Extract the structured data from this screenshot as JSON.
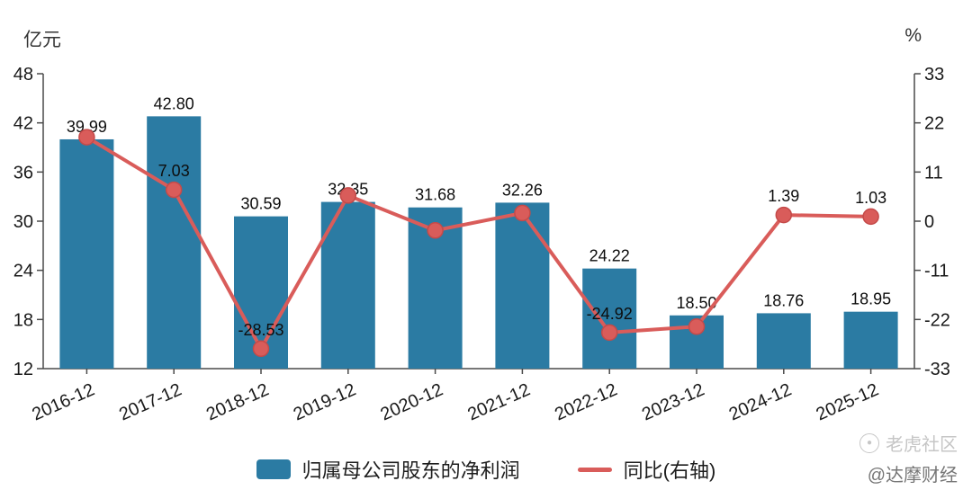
{
  "chart_data": {
    "type": "bar",
    "subtype": "bar-line-combo",
    "categories": [
      "2016-12",
      "2017-12",
      "2018-12",
      "2019-12",
      "2020-12",
      "2021-12",
      "2022-12",
      "2023-12",
      "2024-12",
      "2025-12"
    ],
    "left_axis": {
      "title": "亿元",
      "min": 12,
      "max": 48,
      "ticks": [
        48,
        42,
        36,
        30,
        24,
        18,
        12
      ]
    },
    "right_axis": {
      "title": "%",
      "min": -33,
      "max": 33,
      "ticks": [
        33,
        22,
        11,
        0,
        -11,
        -22,
        -33
      ]
    },
    "grid": false,
    "legend_position": "bottom",
    "series": [
      {
        "name": "归属母公司股东的净利润",
        "type": "bar",
        "axis": "left",
        "color": "#2b7ba3",
        "values": [
          39.99,
          42.8,
          30.59,
          32.35,
          31.68,
          32.26,
          24.22,
          18.5,
          18.76,
          18.95
        ],
        "labels": [
          "39.99",
          "42.80",
          "30.59",
          "32.35",
          "31.68",
          "32.26",
          "24.22",
          "18.50",
          "18.76",
          "18.95"
        ]
      },
      {
        "name": "同比(右轴)",
        "type": "line",
        "axis": "right",
        "color": "#d95c5a",
        "values": [
          18.8,
          7.03,
          -28.53,
          5.75,
          -2.07,
          1.83,
          -24.92,
          -23.6,
          1.39,
          1.03
        ],
        "labels": [
          "",
          "7.03",
          "-28.53",
          "",
          "",
          "",
          "-24.92",
          "",
          "1.39",
          "1.03"
        ]
      }
    ]
  },
  "watermark": {
    "community": "老虎社区",
    "author": "@达摩财经"
  }
}
